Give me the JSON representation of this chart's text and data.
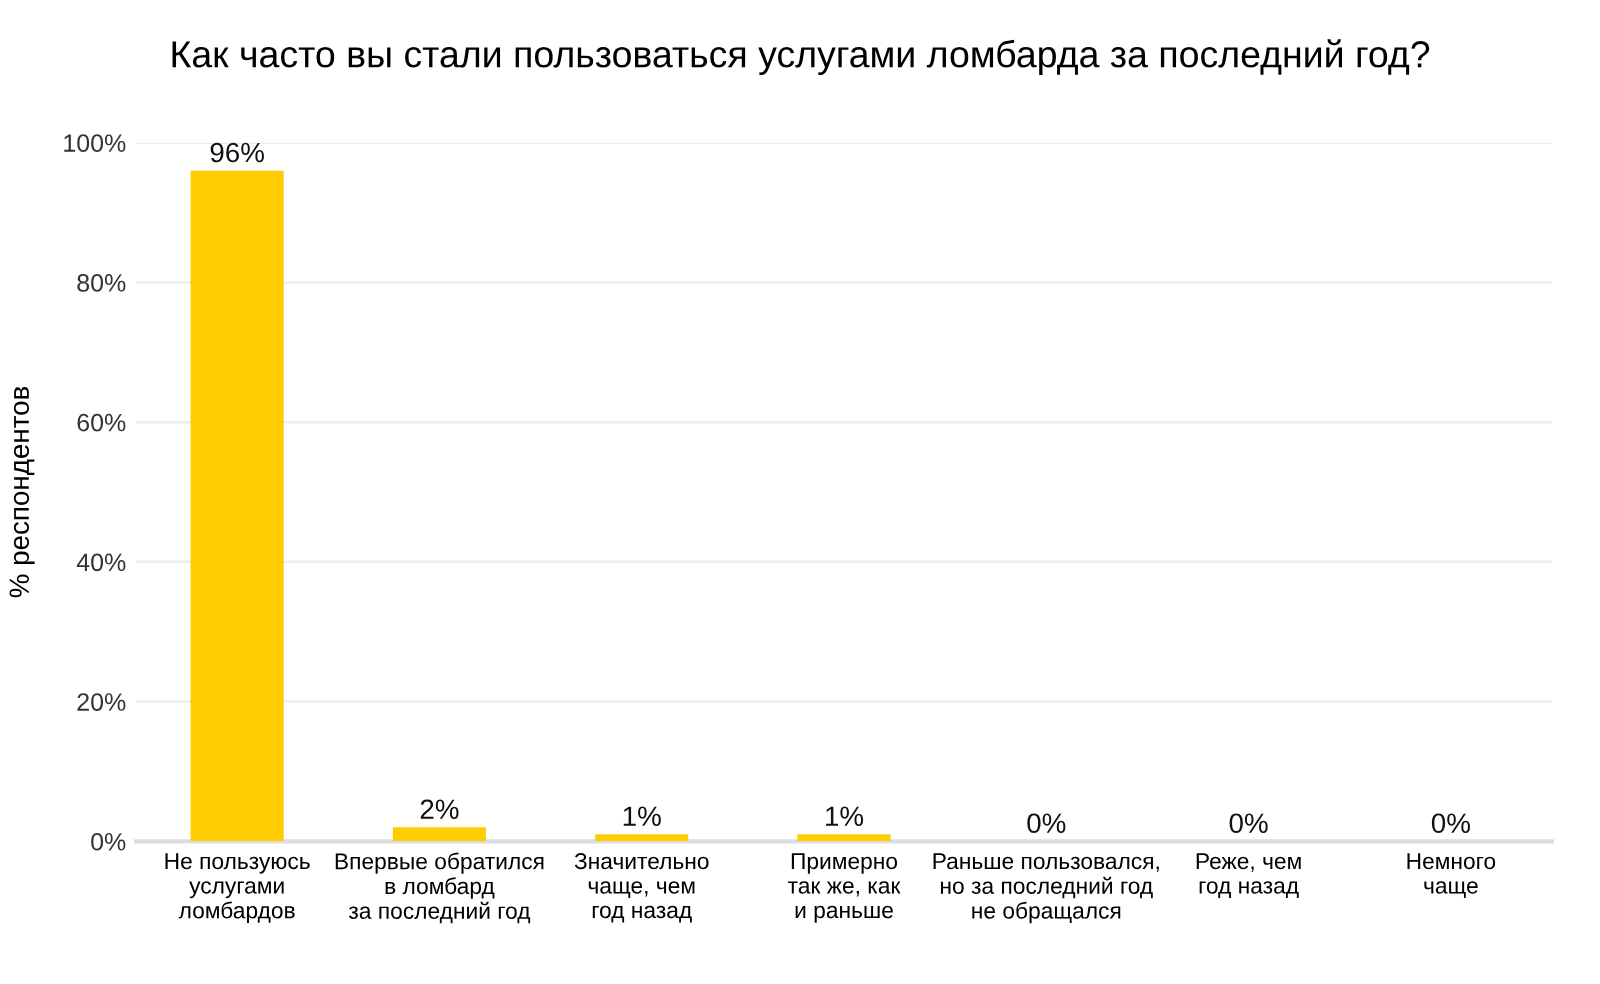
{
  "chart_data": {
    "type": "bar",
    "title": "Как часто вы стали пользоваться услугами ломбарда за последний год?",
    "ylabel": "% респондентов",
    "categories": [
      "Не пользуюсь\nуслугами\nломбардов",
      "Впервые обратился\nв ломбард\nза последний год",
      "Значительно\nчаще, чем\nгод назад",
      "Примерно\nтак же, как\nи раньше",
      "Раньше пользовался,\nно за последний год\nне обращался",
      "Реже, чем\nгод назад",
      "Немного\nчаще"
    ],
    "values": [
      96,
      2,
      1,
      1,
      0,
      0,
      0
    ],
    "value_labels": [
      "96%",
      "2%",
      "1%",
      "1%",
      "0%",
      "0%",
      "0%"
    ],
    "color": "#ffcc00",
    "ylim": [
      0,
      100
    ],
    "yticks": [
      {
        "value": 0,
        "label": "0%"
      },
      {
        "value": 20,
        "label": "20%"
      },
      {
        "value": 40,
        "label": "40%"
      },
      {
        "value": 60,
        "label": "60%"
      },
      {
        "value": 80,
        "label": "80%"
      },
      {
        "value": 100,
        "label": "100%"
      }
    ],
    "grid": "y",
    "legend": false
  }
}
